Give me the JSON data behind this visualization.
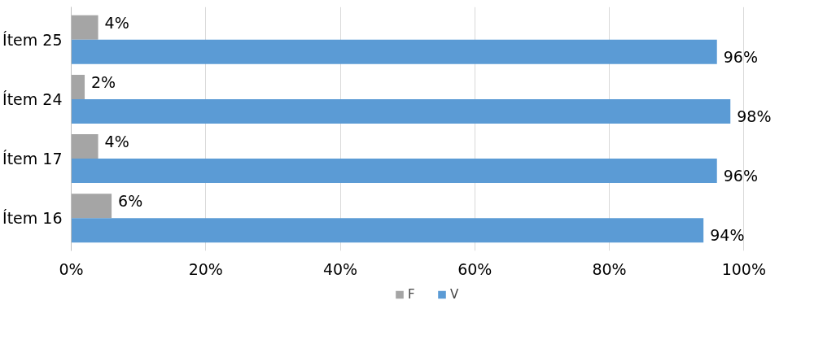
{
  "chart_data": {
    "type": "bar",
    "orientation": "horizontal",
    "categories": [
      "Ítem 25",
      "Ítem 24",
      "Ítem 17",
      "Ítem 16"
    ],
    "series": [
      {
        "name": "F",
        "color": "#a5a5a5",
        "values": [
          4,
          2,
          4,
          6
        ],
        "value_labels": [
          "4%",
          "2%",
          "4%",
          "6%"
        ]
      },
      {
        "name": "V",
        "color": "#5b9bd5",
        "values": [
          96,
          98,
          96,
          94
        ],
        "value_labels": [
          "96%",
          "98%",
          "96%",
          "94%"
        ]
      }
    ],
    "xlim": [
      0,
      100
    ],
    "xticks": [
      {
        "value": 0,
        "label": "0%"
      },
      {
        "value": 20,
        "label": "20%"
      },
      {
        "value": 40,
        "label": "40%"
      },
      {
        "value": 60,
        "label": "60%"
      },
      {
        "value": 80,
        "label": "80%"
      },
      {
        "value": 100,
        "label": "100%"
      }
    ],
    "grid": "x",
    "legend": "bottom"
  }
}
